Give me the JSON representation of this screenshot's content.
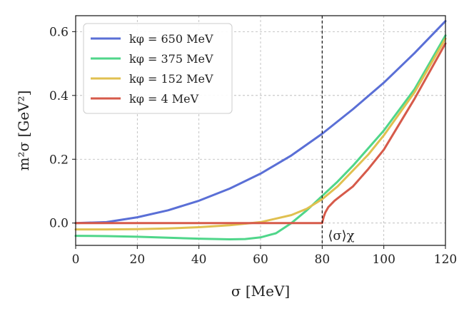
{
  "chart_data": {
    "type": "line",
    "xlabel": "σ [MeV]",
    "ylabel": "m²σ [GeV²]",
    "xlim": [
      0,
      120
    ],
    "ylim": [
      -0.07,
      0.65
    ],
    "xticks": [
      0,
      20,
      40,
      60,
      80,
      100,
      120
    ],
    "xtick_labels": [
      "0",
      "20",
      "40",
      "60",
      "80",
      "100",
      "120"
    ],
    "yticks": [
      0.0,
      0.2,
      0.4,
      0.6
    ],
    "ytick_labels": [
      "0.0",
      "0.2",
      "0.4",
      "0.6"
    ],
    "grid": true,
    "legend_position": "top-left",
    "vline": {
      "x": 80,
      "style": "dashed",
      "label": "⟨σ⟩χ"
    },
    "series": [
      {
        "name": "kφ = 650 MeV",
        "color": "#5a6fd6",
        "x": [
          0,
          10,
          20,
          30,
          40,
          50,
          60,
          70,
          80,
          90,
          100,
          110,
          120
        ],
        "y": [
          0.0,
          0.003,
          0.018,
          0.04,
          0.07,
          0.108,
          0.155,
          0.212,
          0.28,
          0.357,
          0.44,
          0.533,
          0.633
        ]
      },
      {
        "name": "kφ = 375 MeV",
        "color": "#4fd68a",
        "x": [
          0,
          10,
          20,
          30,
          40,
          50,
          55,
          60,
          65,
          70,
          75,
          80,
          85,
          90,
          95,
          100,
          110,
          120
        ],
        "y": [
          -0.04,
          -0.041,
          -0.043,
          -0.046,
          -0.049,
          -0.051,
          -0.05,
          -0.045,
          -0.032,
          0.0,
          0.04,
          0.085,
          0.13,
          0.18,
          0.235,
          0.29,
          0.42,
          0.588
        ]
      },
      {
        "name": "kφ = 152 MeV",
        "color": "#e0c050",
        "x": [
          0,
          10,
          20,
          30,
          40,
          50,
          60,
          70,
          75,
          80,
          85,
          90,
          95,
          100,
          110,
          120
        ],
        "y": [
          -0.02,
          -0.02,
          -0.019,
          -0.017,
          -0.013,
          -0.007,
          0.003,
          0.025,
          0.045,
          0.075,
          0.115,
          0.165,
          0.215,
          0.275,
          0.41,
          0.578
        ]
      },
      {
        "name": "kφ = 4 MeV",
        "color": "#d65a4a",
        "x": [
          0,
          20,
          40,
          60,
          79.9,
          80,
          80.5,
          81,
          82,
          84,
          86,
          90,
          95,
          100,
          110,
          120
        ],
        "y": [
          0.0,
          0.0,
          0.0,
          0.0,
          0.0,
          0.0,
          0.02,
          0.033,
          0.05,
          0.07,
          0.085,
          0.115,
          0.17,
          0.23,
          0.39,
          0.563
        ]
      }
    ]
  }
}
